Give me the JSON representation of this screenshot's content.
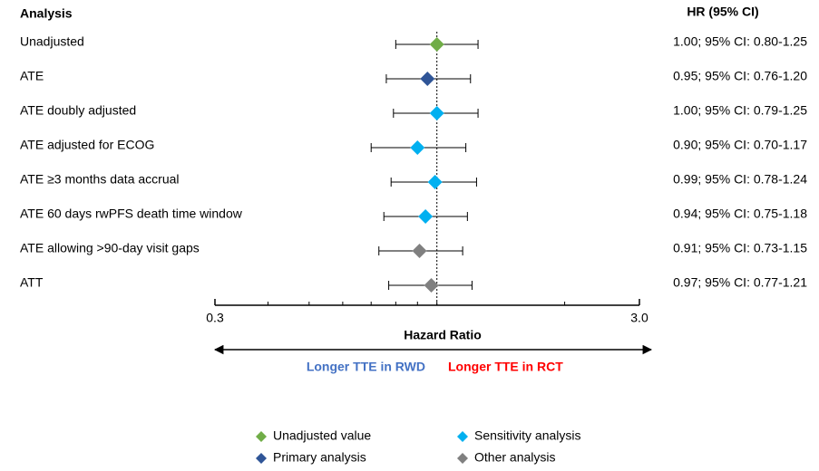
{
  "chart_data": {
    "type": "forest",
    "column_headers": [
      "Analysis",
      "HR (95% CI)"
    ],
    "categories": [
      "Unadjusted",
      "ATE",
      "ATE doubly adjusted",
      "ATE adjusted for ECOG",
      "ATE ≥3 months data accrual",
      "ATE 60 days rwPFS death time window",
      "ATE allowing >90-day visit gaps",
      "ATT"
    ],
    "values": [
      1.0,
      0.95,
      1.0,
      0.9,
      0.99,
      0.94,
      0.91,
      0.97
    ],
    "lower": [
      0.8,
      0.76,
      0.79,
      0.7,
      0.78,
      0.75,
      0.73,
      0.77
    ],
    "upper": [
      1.25,
      1.2,
      1.25,
      1.17,
      1.24,
      1.18,
      1.15,
      1.21
    ],
    "value_labels": [
      "1.00; 95% CI: 0.80-1.25",
      "0.95; 95% CI: 0.76-1.20",
      "1.00; 95% CI: 0.79-1.25",
      "0.90; 95% CI: 0.70-1.17",
      "0.99; 95% CI: 0.78-1.24",
      "0.94; 95% CI: 0.75-1.18",
      "0.91; 95% CI: 0.73-1.15",
      "0.97; 95% CI: 0.77-1.21"
    ],
    "colors": [
      "#70ad47",
      "#2f5597",
      "#00b0f0",
      "#00b0f0",
      "#00b0f0",
      "#00b0f0",
      "#808080",
      "#808080"
    ],
    "xscale": "log",
    "xlim": [
      0.3,
      3
    ],
    "xticks": [
      0.3,
      {
        "value": 3,
        "label": "3.0"
      }
    ],
    "xminorticks": [
      0.4,
      0.5,
      0.6,
      0.7,
      0.8,
      0.9,
      1,
      2
    ],
    "refline": 1,
    "xlabel": "Hazard Ratio",
    "direction_labels": [
      {
        "text": "Longer TTE in RWD",
        "color": "#4472c4"
      },
      {
        "text": "Longer TTE in RCT",
        "color": "#ff0000"
      }
    ],
    "legend": [
      {
        "name": "Unadjusted value",
        "color": "#70ad47"
      },
      {
        "name": "Primary analysis",
        "color": "#2f5597"
      },
      {
        "name": "Sensitivity analysis",
        "color": "#00b0f0"
      },
      {
        "name": "Other analysis",
        "color": "#808080"
      }
    ]
  }
}
